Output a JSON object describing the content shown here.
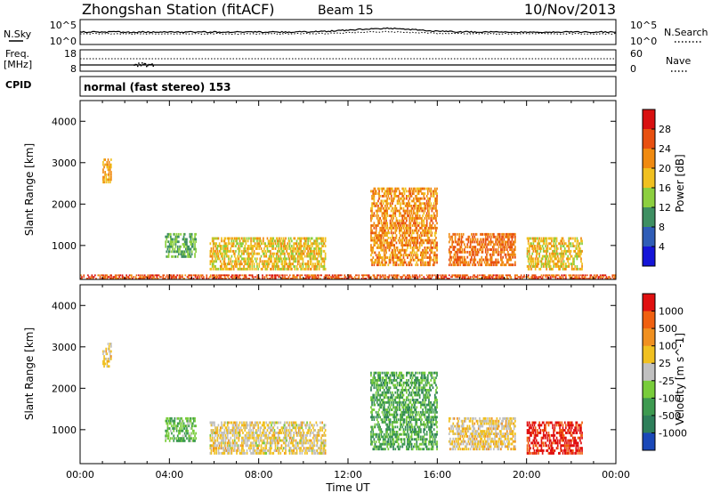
{
  "header": {
    "title": "Zhongshan Station (fitACF)",
    "beam": "Beam 15",
    "date": "10/Nov/2013"
  },
  "top_panels": {
    "nsky_label": "N.Sky",
    "nsearch_label": "N.Search",
    "noise_tick_top": "10^5",
    "noise_tick_bottom": "10^0",
    "freq_label_1": "Freq.",
    "freq_label_2": "[MHz]",
    "freq_tick_top": "18",
    "freq_tick_bottom": "8",
    "nave_label": "Nave",
    "nave_tick_top": "60",
    "nave_tick_bottom": "0",
    "cpid_label": "CPID",
    "cpid_text": "normal (fast stereo) 153"
  },
  "chart_data": [
    {
      "type": "heatmap",
      "title": "",
      "ylabel": "Slant Range [km]",
      "xlabel": "",
      "x_ticks": [
        "00:00",
        "04:00",
        "08:00",
        "12:00",
        "16:00",
        "20:00",
        "00:00"
      ],
      "y_ticks": [
        "1000",
        "2000",
        "3000",
        "4000"
      ],
      "ylim": [
        180,
        4500
      ],
      "colorbar": {
        "label": "Power [dB]",
        "ticks": [
          "4",
          "8",
          "12",
          "16",
          "20",
          "24",
          "28"
        ],
        "range": [
          0,
          32
        ],
        "colors": [
          "#1515d8",
          "#2f5db7",
          "#3e8f62",
          "#8ccf3f",
          "#f0c020",
          "#f08a10",
          "#e85010",
          "#d81010"
        ]
      },
      "features": [
        {
          "start": 1.0,
          "end": 1.4,
          "range_low": 2500,
          "range_high": 3100,
          "value": 20
        },
        {
          "start": 3.8,
          "end": 5.2,
          "range_low": 700,
          "range_high": 1300,
          "value": 12
        },
        {
          "start": 5.8,
          "end": 11.0,
          "range_low": 400,
          "range_high": 1200,
          "value": 18
        },
        {
          "start": 13.0,
          "end": 16.0,
          "range_low": 500,
          "range_high": 2400,
          "value": 22
        },
        {
          "start": 16.5,
          "end": 19.5,
          "range_low": 500,
          "range_high": 1300,
          "value": 24
        },
        {
          "start": 20.0,
          "end": 22.5,
          "range_low": 400,
          "range_high": 1200,
          "value": 18
        },
        {
          "start": 0.0,
          "end": 24.0,
          "range_low": 180,
          "range_high": 300,
          "value": 26
        }
      ]
    },
    {
      "type": "heatmap",
      "title": "",
      "ylabel": "Slant Range [km]",
      "xlabel": "Time UT",
      "x_ticks": [
        "00:00",
        "04:00",
        "08:00",
        "12:00",
        "16:00",
        "20:00",
        "00:00"
      ],
      "y_ticks": [
        "1000",
        "2000",
        "3000",
        "4000"
      ],
      "ylim": [
        180,
        4500
      ],
      "colorbar": {
        "label": "Velocity [m s^-1]",
        "ticks": [
          "1000",
          "500",
          "100",
          "25",
          "-25",
          "-100",
          "-500",
          "-1000"
        ],
        "range": [
          -1000,
          1000
        ],
        "colors": [
          "#1a48b8",
          "#2e7f5a",
          "#3d9a50",
          "#78cc3a",
          "#c0c0c0",
          "#f0c020",
          "#f09020",
          "#f06010",
          "#e01010"
        ]
      },
      "features": [
        {
          "start": 1.0,
          "end": 1.4,
          "range_low": 2500,
          "range_high": 3100,
          "value": 150
        },
        {
          "start": 3.8,
          "end": 5.2,
          "range_low": 700,
          "range_high": 1300,
          "value": -300
        },
        {
          "start": 5.8,
          "end": 11.0,
          "range_low": 400,
          "range_high": 1200,
          "value": 120
        },
        {
          "start": 13.0,
          "end": 16.0,
          "range_low": 500,
          "range_high": 2400,
          "value": -400
        },
        {
          "start": 16.5,
          "end": 19.5,
          "range_low": 500,
          "range_high": 1300,
          "value": 150
        },
        {
          "start": 20.0,
          "end": 22.5,
          "range_low": 400,
          "range_high": 1200,
          "value": 900
        }
      ]
    }
  ]
}
